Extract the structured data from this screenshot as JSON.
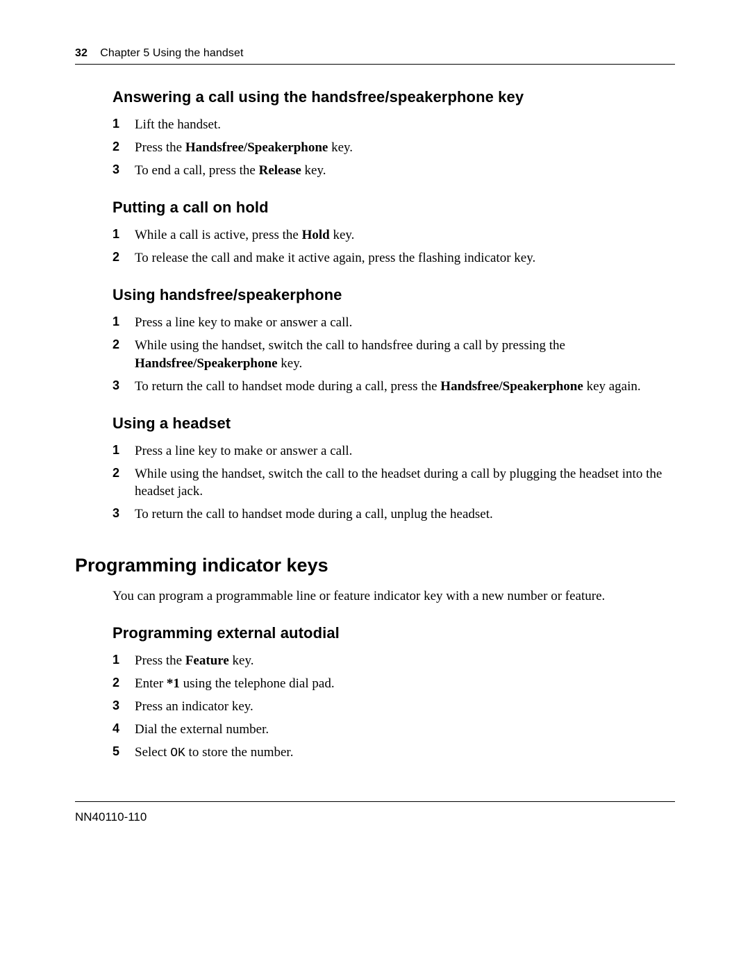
{
  "header": {
    "page_number": "32",
    "chapter_label": "Chapter 5  Using the handset"
  },
  "sections": {
    "answering": {
      "heading": "Answering a call using the handsfree/speakerphone key",
      "steps": [
        [
          {
            "t": "Lift the handset."
          }
        ],
        [
          {
            "t": "Press the "
          },
          {
            "t": "Handsfree/Speakerphone",
            "b": true
          },
          {
            "t": " key."
          }
        ],
        [
          {
            "t": "To end a call, press the "
          },
          {
            "t": "Release",
            "b": true
          },
          {
            "t": " key."
          }
        ]
      ]
    },
    "hold": {
      "heading": "Putting a call on hold",
      "steps": [
        [
          {
            "t": "While a call is active, press the "
          },
          {
            "t": "Hold",
            "b": true
          },
          {
            "t": " key."
          }
        ],
        [
          {
            "t": "To release the call and make it active again, press the flashing indicator key."
          }
        ]
      ]
    },
    "handsfree": {
      "heading": "Using handsfree/speakerphone",
      "steps": [
        [
          {
            "t": "Press a line key to make or answer a call."
          }
        ],
        [
          {
            "t": "While using the handset, switch the call to handsfree during a call by pressing the "
          },
          {
            "t": "Handsfree/Speakerphone",
            "b": true
          },
          {
            "t": " key."
          }
        ],
        [
          {
            "t": "To return the call to handset mode during a call, press the "
          },
          {
            "t": "Handsfree/Speakerphone",
            "b": true
          },
          {
            "t": " key again."
          }
        ]
      ]
    },
    "headset": {
      "heading": "Using a headset",
      "steps": [
        [
          {
            "t": "Press a line key to make or answer a call."
          }
        ],
        [
          {
            "t": "While using the handset, switch the call to the headset during a call by plugging the headset into the headset jack."
          }
        ],
        [
          {
            "t": "To return the call to handset mode during a call, unplug the headset."
          }
        ]
      ]
    },
    "program_keys": {
      "heading": "Programming indicator keys",
      "intro": "You can program a programmable line or feature indicator key with a new number or feature."
    },
    "ext_autodial": {
      "heading": "Programming external autodial",
      "steps": [
        [
          {
            "t": "Press the "
          },
          {
            "t": "Feature",
            "b": true
          },
          {
            "t": " key."
          }
        ],
        [
          {
            "t": "Enter "
          },
          {
            "t": "*1",
            "b": true
          },
          {
            "t": " using the telephone dial pad."
          }
        ],
        [
          {
            "t": "Press an indicator key."
          }
        ],
        [
          {
            "t": "Dial the external number."
          }
        ],
        [
          {
            "t": "Select "
          },
          {
            "t": "OK",
            "code": true
          },
          {
            "t": " to store the number."
          }
        ]
      ]
    }
  },
  "footer": {
    "doc_id": "NN40110-110"
  }
}
